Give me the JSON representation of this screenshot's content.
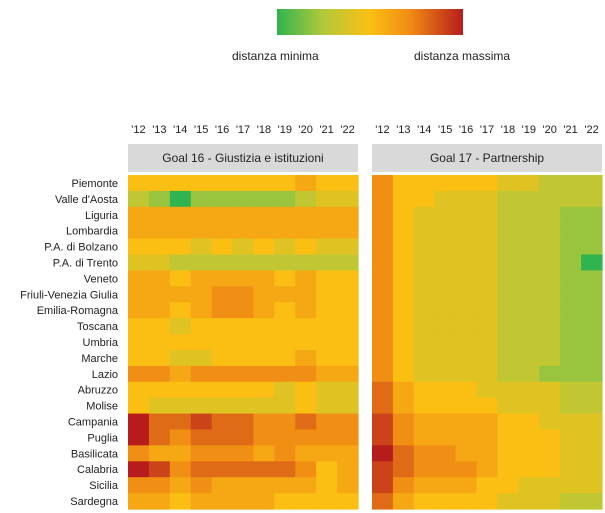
{
  "legend": {
    "min_label": "distanza minima",
    "max_label": "distanza massima",
    "colors": [
      "#2fb44f",
      "#fbbf14",
      "#b71c1c"
    ]
  },
  "chart_data": {
    "type": "heatmap",
    "scale": "0 = distanza minima (green), 10 = distanza massima (red)",
    "years": [
      "'12",
      "'13",
      "'14",
      "'15",
      "'16",
      "'17",
      "'18",
      "'19",
      "'20",
      "'21",
      "'22"
    ],
    "regions": [
      "Piemonte",
      "Valle d'Aosta",
      "Liguria",
      "Lombardia",
      "P.A. di Bolzano",
      "P.A. di Trento",
      "Veneto",
      "Friuli-Venezia Giulia",
      "Emilia-Romagna",
      "Toscana",
      "Umbria",
      "Marche",
      "Lazio",
      "Abruzzo",
      "Molise",
      "Campania",
      "Puglia",
      "Basilicata",
      "Calabria",
      "Sicilia",
      "Sardegna"
    ],
    "panels": [
      {
        "title": "Goal 16 - Giustizia e istituzioni",
        "values": [
          [
            5,
            5,
            5,
            5,
            5,
            5,
            5,
            5,
            6,
            5,
            5
          ],
          [
            3,
            2,
            0,
            2,
            2,
            2,
            2,
            2,
            3,
            4,
            4
          ],
          [
            6,
            6,
            6,
            6,
            6,
            6,
            6,
            6,
            6,
            6,
            6
          ],
          [
            6,
            6,
            6,
            6,
            6,
            6,
            6,
            6,
            6,
            6,
            6
          ],
          [
            5,
            5,
            5,
            4,
            5,
            4,
            5,
            4,
            5,
            4,
            4
          ],
          [
            4,
            4,
            3,
            3,
            3,
            3,
            3,
            3,
            3,
            3,
            3
          ],
          [
            6,
            6,
            5,
            6,
            6,
            6,
            6,
            5,
            6,
            5,
            5
          ],
          [
            6,
            6,
            6,
            6,
            7,
            7,
            6,
            6,
            6,
            5,
            5
          ],
          [
            6,
            6,
            5,
            6,
            7,
            7,
            6,
            5,
            6,
            5,
            5
          ],
          [
            5,
            5,
            4,
            5,
            5,
            5,
            5,
            5,
            5,
            5,
            5
          ],
          [
            5,
            5,
            5,
            5,
            5,
            5,
            5,
            5,
            5,
            5,
            5
          ],
          [
            5,
            5,
            4,
            4,
            5,
            5,
            5,
            5,
            6,
            5,
            5
          ],
          [
            7,
            7,
            6,
            7,
            7,
            7,
            7,
            7,
            7,
            6,
            6
          ],
          [
            5,
            5,
            5,
            5,
            5,
            5,
            5,
            4,
            5,
            4,
            4
          ],
          [
            5,
            4,
            4,
            4,
            4,
            4,
            4,
            4,
            5,
            4,
            4
          ],
          [
            10,
            8,
            8,
            9,
            8,
            8,
            7,
            7,
            8,
            7,
            7
          ],
          [
            10,
            8,
            7,
            8,
            8,
            8,
            7,
            7,
            7,
            7,
            7
          ],
          [
            7,
            6,
            6,
            7,
            7,
            7,
            6,
            7,
            6,
            6,
            6
          ],
          [
            10,
            9,
            7,
            8,
            8,
            8,
            8,
            8,
            7,
            5,
            6
          ],
          [
            7,
            7,
            6,
            7,
            6,
            6,
            6,
            6,
            6,
            5,
            6
          ],
          [
            6,
            6,
            5,
            6,
            6,
            6,
            6,
            5,
            5,
            5,
            5
          ]
        ]
      },
      {
        "title": "Goal 17 - Partnership",
        "values": [
          [
            7,
            5,
            5,
            5,
            5,
            5,
            4,
            4,
            3,
            3,
            3
          ],
          [
            7,
            5,
            5,
            4,
            4,
            4,
            3,
            3,
            3,
            3,
            3
          ],
          [
            7,
            5,
            4,
            4,
            4,
            4,
            3,
            3,
            3,
            2,
            2
          ],
          [
            7,
            5,
            4,
            4,
            4,
            4,
            3,
            3,
            3,
            2,
            2
          ],
          [
            7,
            5,
            4,
            4,
            4,
            4,
            3,
            3,
            3,
            2,
            2
          ],
          [
            7,
            5,
            4,
            4,
            4,
            4,
            3,
            3,
            3,
            2,
            0
          ],
          [
            7,
            5,
            4,
            4,
            4,
            4,
            3,
            3,
            3,
            2,
            2
          ],
          [
            7,
            5,
            4,
            4,
            4,
            4,
            3,
            3,
            3,
            2,
            2
          ],
          [
            7,
            5,
            4,
            4,
            4,
            4,
            3,
            3,
            3,
            2,
            2
          ],
          [
            7,
            5,
            4,
            4,
            4,
            4,
            3,
            3,
            3,
            2,
            2
          ],
          [
            7,
            5,
            4,
            4,
            4,
            4,
            3,
            3,
            3,
            2,
            2
          ],
          [
            7,
            5,
            4,
            4,
            4,
            4,
            3,
            3,
            3,
            2,
            2
          ],
          [
            7,
            5,
            4,
            4,
            4,
            4,
            3,
            3,
            2,
            2,
            2
          ],
          [
            8,
            6,
            5,
            5,
            5,
            4,
            4,
            4,
            4,
            3,
            3
          ],
          [
            8,
            6,
            5,
            5,
            5,
            5,
            4,
            4,
            4,
            3,
            3
          ],
          [
            9,
            7,
            6,
            6,
            6,
            6,
            5,
            5,
            4,
            4,
            4
          ],
          [
            9,
            7,
            6,
            6,
            6,
            6,
            5,
            5,
            5,
            4,
            4
          ],
          [
            10,
            8,
            7,
            7,
            6,
            6,
            5,
            5,
            5,
            4,
            4
          ],
          [
            9,
            8,
            7,
            7,
            7,
            6,
            5,
            5,
            5,
            4,
            4
          ],
          [
            9,
            7,
            6,
            6,
            6,
            5,
            5,
            4,
            4,
            4,
            4
          ],
          [
            8,
            6,
            5,
            5,
            5,
            5,
            4,
            4,
            4,
            3,
            3
          ]
        ]
      }
    ]
  }
}
